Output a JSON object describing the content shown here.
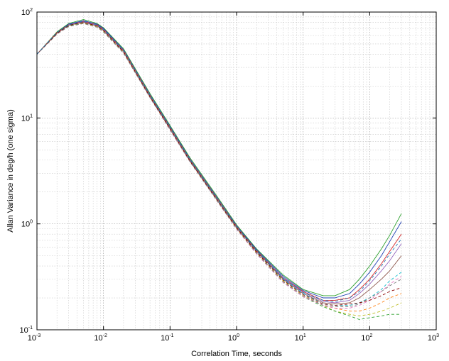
{
  "chart_data": {
    "type": "line",
    "title": "",
    "xlabel": "Correlation Time, seconds",
    "ylabel": "Allan Variance in deg/h (one sigma)",
    "xscale": "log",
    "yscale": "log",
    "xlim": [
      0.001,
      1000
    ],
    "ylim": [
      0.1,
      100
    ],
    "grid": true,
    "legend": "none",
    "x_ticks": [
      {
        "base": "10",
        "exp": "-3"
      },
      {
        "base": "10",
        "exp": "-2"
      },
      {
        "base": "10",
        "exp": "-1"
      },
      {
        "base": "10",
        "exp": "0"
      },
      {
        "base": "10",
        "exp": "1"
      },
      {
        "base": "10",
        "exp": "2"
      },
      {
        "base": "10",
        "exp": "3"
      }
    ],
    "y_ticks": [
      {
        "base": "10",
        "exp": "-1"
      },
      {
        "base": "10",
        "exp": "0"
      },
      {
        "base": "10",
        "exp": "1"
      },
      {
        "base": "10",
        "exp": "2"
      }
    ],
    "x": [
      0.001,
      0.002,
      0.003,
      0.005,
      0.008,
      0.01,
      0.02,
      0.05,
      0.1,
      0.2,
      0.5,
      1,
      2,
      5,
      10,
      20,
      30,
      50,
      70,
      100,
      150,
      200,
      300
    ],
    "series": [
      {
        "color": "#2ca02c",
        "style": "solid",
        "values": [
          40,
          65,
          78,
          85,
          78,
          71,
          45,
          17,
          8.5,
          4.2,
          1.85,
          0.98,
          0.58,
          0.33,
          0.24,
          0.21,
          0.21,
          0.24,
          0.3,
          0.4,
          0.58,
          0.78,
          1.25
        ]
      },
      {
        "color": "#1f3fb4",
        "style": "solid",
        "values": [
          40,
          64,
          77,
          83,
          77,
          70,
          44,
          16.6,
          8.3,
          4.1,
          1.8,
          0.96,
          0.57,
          0.32,
          0.235,
          0.2,
          0.2,
          0.22,
          0.27,
          0.35,
          0.5,
          0.68,
          1.05
        ]
      },
      {
        "color": "#d62728",
        "style": "solid",
        "values": [
          40,
          64,
          76,
          82,
          76,
          69,
          43.5,
          16.4,
          8.2,
          4.05,
          1.78,
          0.95,
          0.56,
          0.31,
          0.23,
          0.19,
          0.19,
          0.2,
          0.24,
          0.3,
          0.42,
          0.55,
          0.8
        ]
      },
      {
        "color": "#9467bd",
        "style": "solid",
        "values": [
          40,
          63,
          76,
          81,
          75,
          68,
          43,
          16.2,
          8.1,
          4,
          1.76,
          0.94,
          0.55,
          0.305,
          0.225,
          0.185,
          0.18,
          0.19,
          0.22,
          0.27,
          0.36,
          0.45,
          0.65
        ]
      },
      {
        "color": "#8c564b",
        "style": "solid",
        "values": [
          40,
          63,
          75,
          80,
          74,
          67,
          42.5,
          16,
          8,
          3.95,
          1.74,
          0.93,
          0.55,
          0.3,
          0.22,
          0.18,
          0.175,
          0.18,
          0.2,
          0.24,
          0.3,
          0.36,
          0.5
        ]
      },
      {
        "color": "#17becf",
        "style": "dashed",
        "values": [
          40,
          63,
          75,
          80,
          74,
          67,
          42,
          15.9,
          7.9,
          3.92,
          1.72,
          0.92,
          0.54,
          0.3,
          0.22,
          0.175,
          0.17,
          0.17,
          0.18,
          0.2,
          0.24,
          0.29,
          0.35
        ]
      },
      {
        "color": "#ff7f0e",
        "style": "dashed",
        "values": [
          40,
          62,
          74,
          79,
          73,
          66,
          42,
          15.8,
          7.9,
          3.9,
          1.7,
          0.91,
          0.53,
          0.29,
          0.21,
          0.17,
          0.16,
          0.15,
          0.15,
          0.16,
          0.18,
          0.2,
          0.22
        ]
      },
      {
        "color": "#bcbd22",
        "style": "dashed",
        "values": [
          40,
          62,
          74,
          79,
          73,
          66,
          41.5,
          15.7,
          7.8,
          3.88,
          1.69,
          0.9,
          0.53,
          0.29,
          0.21,
          0.17,
          0.15,
          0.14,
          0.135,
          0.14,
          0.15,
          0.16,
          0.18
        ]
      },
      {
        "color": "#2ca02c",
        "style": "dashed",
        "values": [
          40,
          62,
          74,
          78,
          72,
          65,
          41,
          15.6,
          7.8,
          3.86,
          1.68,
          0.9,
          0.52,
          0.28,
          0.205,
          0.165,
          0.15,
          0.135,
          0.125,
          0.13,
          0.135,
          0.14,
          0.14
        ]
      },
      {
        "color": "#e377c2",
        "style": "dashed",
        "values": [
          40,
          62,
          73,
          78,
          72,
          65,
          41,
          15.5,
          7.7,
          3.84,
          1.67,
          0.89,
          0.52,
          0.28,
          0.205,
          0.17,
          0.16,
          0.16,
          0.17,
          0.19,
          0.23,
          0.27,
          0.32
        ]
      },
      {
        "color": "#7f7f7f",
        "style": "dashed",
        "values": [
          40,
          62,
          73,
          78,
          72,
          65,
          41,
          15.6,
          7.8,
          3.85,
          1.68,
          0.9,
          0.53,
          0.285,
          0.21,
          0.17,
          0.165,
          0.165,
          0.175,
          0.2,
          0.23,
          0.26,
          0.3
        ]
      },
      {
        "color": "#8b0000",
        "style": "dashed",
        "values": [
          40,
          63,
          75,
          80,
          74,
          67,
          42,
          15.9,
          7.9,
          3.92,
          1.71,
          0.92,
          0.54,
          0.295,
          0.215,
          0.175,
          0.17,
          0.175,
          0.18,
          0.19,
          0.21,
          0.23,
          0.25
        ]
      },
      {
        "color": "#1f77b4",
        "style": "dashed",
        "values": [
          40,
          64,
          76,
          82,
          76,
          69,
          43.5,
          16.4,
          8.2,
          4.05,
          1.77,
          0.95,
          0.56,
          0.31,
          0.225,
          0.19,
          0.185,
          0.2,
          0.23,
          0.29,
          0.4,
          0.52,
          0.72
        ]
      }
    ]
  }
}
